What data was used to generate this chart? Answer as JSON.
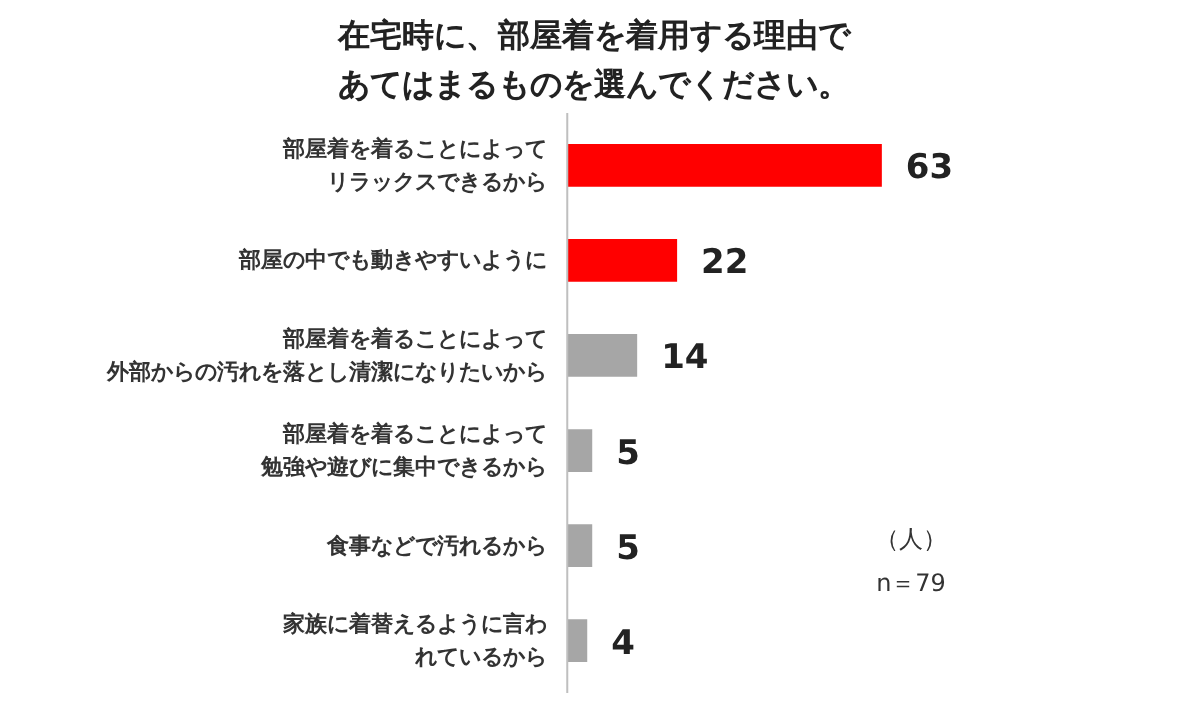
{
  "chart_data": {
    "type": "bar",
    "orientation": "horizontal",
    "title": "在宅時に、部屋着を着用する理由であてはまるものを選んでください。",
    "categories": [
      "部屋着を着ることによってリラックスできるから",
      "部屋の中でも動きやすいように",
      "部屋着を着ることによって外部からの汚れを落とし清潔になりたいから",
      "部屋着を着ることによって勉強や遊びに集中できるから",
      "食事などで汚れるから",
      "家族に着替えるように言われているから"
    ],
    "values": [
      63,
      22,
      14,
      5,
      5,
      4
    ],
    "colors": [
      "#ff0000",
      "#ff0000",
      "#a6a6a6",
      "#a6a6a6",
      "#a6a6a6",
      "#a6a6a6"
    ],
    "data_labels": true,
    "annotations": [
      "（人）",
      "n＝79"
    ]
  }
}
